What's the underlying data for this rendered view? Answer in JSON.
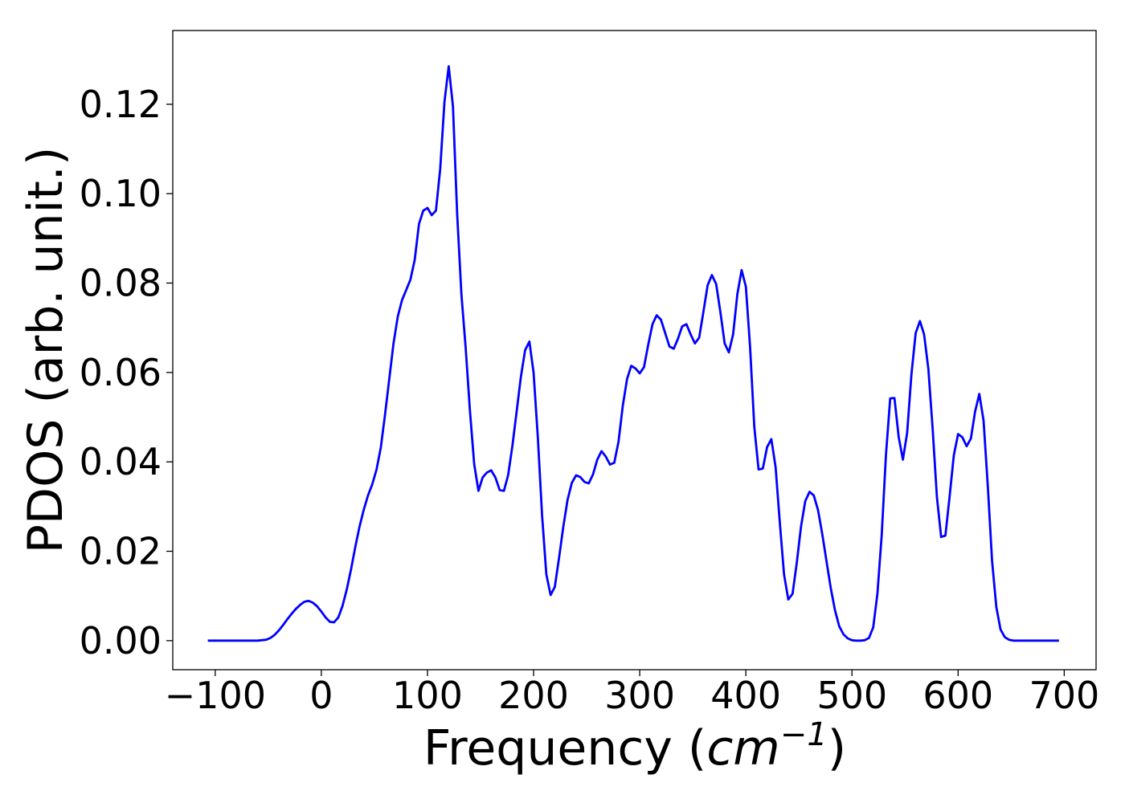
{
  "chart_data": {
    "type": "line",
    "title": "",
    "xlabel": "Frequency",
    "xlabel_unit_base": "cm",
    "xlabel_unit_exp": "−1",
    "ylabel": "PDOS (arb. unit.)",
    "xlim": [
      -140,
      730
    ],
    "ylim": [
      -0.0065,
      0.1365
    ],
    "xticks": [
      -100,
      0,
      100,
      200,
      300,
      400,
      500,
      600,
      700
    ],
    "xtick_labels": [
      "−100",
      "0",
      "100",
      "200",
      "300",
      "400",
      "500",
      "600",
      "700"
    ],
    "yticks": [
      0.0,
      0.02,
      0.04,
      0.06,
      0.08,
      0.1,
      0.12
    ],
    "ytick_labels": [
      "0.00",
      "0.02",
      "0.04",
      "0.06",
      "0.08",
      "0.10",
      "0.12"
    ],
    "grid": false,
    "legend": "none",
    "series": [
      {
        "color": "#0000ff",
        "x": [
          -107,
          -60,
          -52,
          -48,
          -44,
          -40,
          -36,
          -32,
          -28,
          -24,
          -20,
          -16,
          -12,
          -8,
          -4,
          0,
          4,
          8,
          12,
          16,
          20,
          24,
          28,
          32,
          36,
          40,
          44,
          48,
          52,
          56,
          60,
          64,
          68,
          72,
          76,
          80,
          84,
          88,
          92,
          96,
          100,
          104,
          108,
          112,
          116,
          120,
          124,
          128,
          132,
          136,
          140,
          144,
          148,
          152,
          156,
          160,
          164,
          168,
          172,
          176,
          180,
          184,
          188,
          192,
          196,
          200,
          204,
          208,
          212,
          216,
          220,
          224,
          228,
          232,
          236,
          240,
          244,
          248,
          252,
          256,
          260,
          264,
          268,
          272,
          276,
          280,
          284,
          288,
          292,
          296,
          300,
          304,
          308,
          312,
          316,
          320,
          324,
          328,
          332,
          336,
          340,
          344,
          348,
          352,
          356,
          360,
          364,
          368,
          372,
          376,
          380,
          384,
          388,
          392,
          396,
          400,
          404,
          408,
          412,
          416,
          420,
          424,
          428,
          432,
          436,
          440,
          444,
          448,
          452,
          456,
          460,
          464,
          468,
          472,
          476,
          480,
          484,
          488,
          492,
          496,
          500,
          504,
          508,
          512,
          516,
          520,
          524,
          528,
          532,
          536,
          540,
          544,
          548,
          552,
          556,
          560,
          564,
          568,
          572,
          576,
          580,
          584,
          588,
          592,
          596,
          600,
          604,
          608,
          612,
          616,
          620,
          624,
          628,
          632,
          636,
          640,
          644,
          648,
          652,
          660,
          695
        ],
        "y": [
          0.0,
          0.0,
          0.0002,
          0.0006,
          0.0013,
          0.0023,
          0.0035,
          0.0048,
          0.006,
          0.0071,
          0.008,
          0.0087,
          0.0089,
          0.0085,
          0.0077,
          0.0065,
          0.0052,
          0.0042,
          0.0041,
          0.0052,
          0.0078,
          0.0115,
          0.016,
          0.021,
          0.0255,
          0.0293,
          0.0325,
          0.035,
          0.0383,
          0.0432,
          0.0505,
          0.0585,
          0.0665,
          0.0725,
          0.0762,
          0.0785,
          0.0808,
          0.0852,
          0.0932,
          0.0962,
          0.0968,
          0.0952,
          0.0962,
          0.1055,
          0.1205,
          0.1285,
          0.1195,
          0.0955,
          0.0775,
          0.0655,
          0.0515,
          0.0395,
          0.0335,
          0.0365,
          0.0376,
          0.0381,
          0.0365,
          0.0337,
          0.0335,
          0.037,
          0.0435,
          0.0512,
          0.059,
          0.065,
          0.0669,
          0.06,
          0.0455,
          0.028,
          0.0148,
          0.0102,
          0.012,
          0.0185,
          0.0255,
          0.0315,
          0.0353,
          0.037,
          0.0366,
          0.0355,
          0.0352,
          0.0372,
          0.0405,
          0.0424,
          0.0412,
          0.0394,
          0.0398,
          0.0445,
          0.0525,
          0.0585,
          0.0615,
          0.0609,
          0.0598,
          0.0612,
          0.0662,
          0.0708,
          0.0728,
          0.0718,
          0.0688,
          0.0658,
          0.0653,
          0.0675,
          0.0703,
          0.0708,
          0.0685,
          0.0665,
          0.0678,
          0.0735,
          0.0795,
          0.0818,
          0.0798,
          0.0735,
          0.0665,
          0.0645,
          0.0685,
          0.0775,
          0.0829,
          0.0792,
          0.0655,
          0.0478,
          0.0383,
          0.0385,
          0.0433,
          0.0451,
          0.0388,
          0.0265,
          0.0148,
          0.0092,
          0.0105,
          0.0175,
          0.0255,
          0.0312,
          0.0333,
          0.0325,
          0.0292,
          0.0238,
          0.0178,
          0.0118,
          0.0068,
          0.0032,
          0.0014,
          0.0005,
          0.0001,
          0.0,
          0.0,
          0.0001,
          0.0006,
          0.003,
          0.0105,
          0.0235,
          0.0415,
          0.0542,
          0.0543,
          0.0455,
          0.0405,
          0.0465,
          0.0595,
          0.0688,
          0.0715,
          0.0685,
          0.0608,
          0.0475,
          0.0322,
          0.0232,
          0.0235,
          0.0322,
          0.0415,
          0.0462,
          0.0455,
          0.0435,
          0.0452,
          0.0512,
          0.0552,
          0.0492,
          0.0345,
          0.0178,
          0.0075,
          0.0025,
          0.0008,
          0.0002,
          0.0,
          0.0,
          0.0
        ]
      }
    ]
  }
}
